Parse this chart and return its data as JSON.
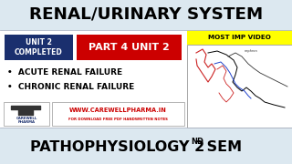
{
  "bg_color": "#dce8f0",
  "title_text": "RENAL/URINARY SYSTEM",
  "title_color": "#000000",
  "unit_box_text": "UNIT 2\nCOMPLETED",
  "unit_box_bg": "#1a2f6e",
  "unit_box_fg": "#ffffff",
  "part_box_text": "PART 4 UNIT 2",
  "part_box_bg": "#cc0000",
  "part_box_fg": "#ffffff",
  "most_imp_text": "MOST IMP VIDEO",
  "most_imp_bg": "#ffff00",
  "most_imp_fg": "#000000",
  "bullet1": "•  ACUTE RENAL FAILURE",
  "bullet2": "•  CHRONIC RENAL FAILURE",
  "bullet_color": "#000000",
  "website_text": "WWW.CAREWELLPHARMA.IN",
  "website_sub": "FOR DOWNLOAD FREE PDF HANDWRITTEN NOTES",
  "website_color": "#cc0000",
  "website_sub_color": "#cc0000",
  "bottom_text": "PATHOPHYSIOLOGY 2",
  "bottom_sup": "ND",
  "bottom_text2": " SEM",
  "bottom_color": "#000000",
  "logo_box_bg": "#ffffff",
  "diagram_box_bg": "#ffffff",
  "white_mid_bg": "#ffffff"
}
